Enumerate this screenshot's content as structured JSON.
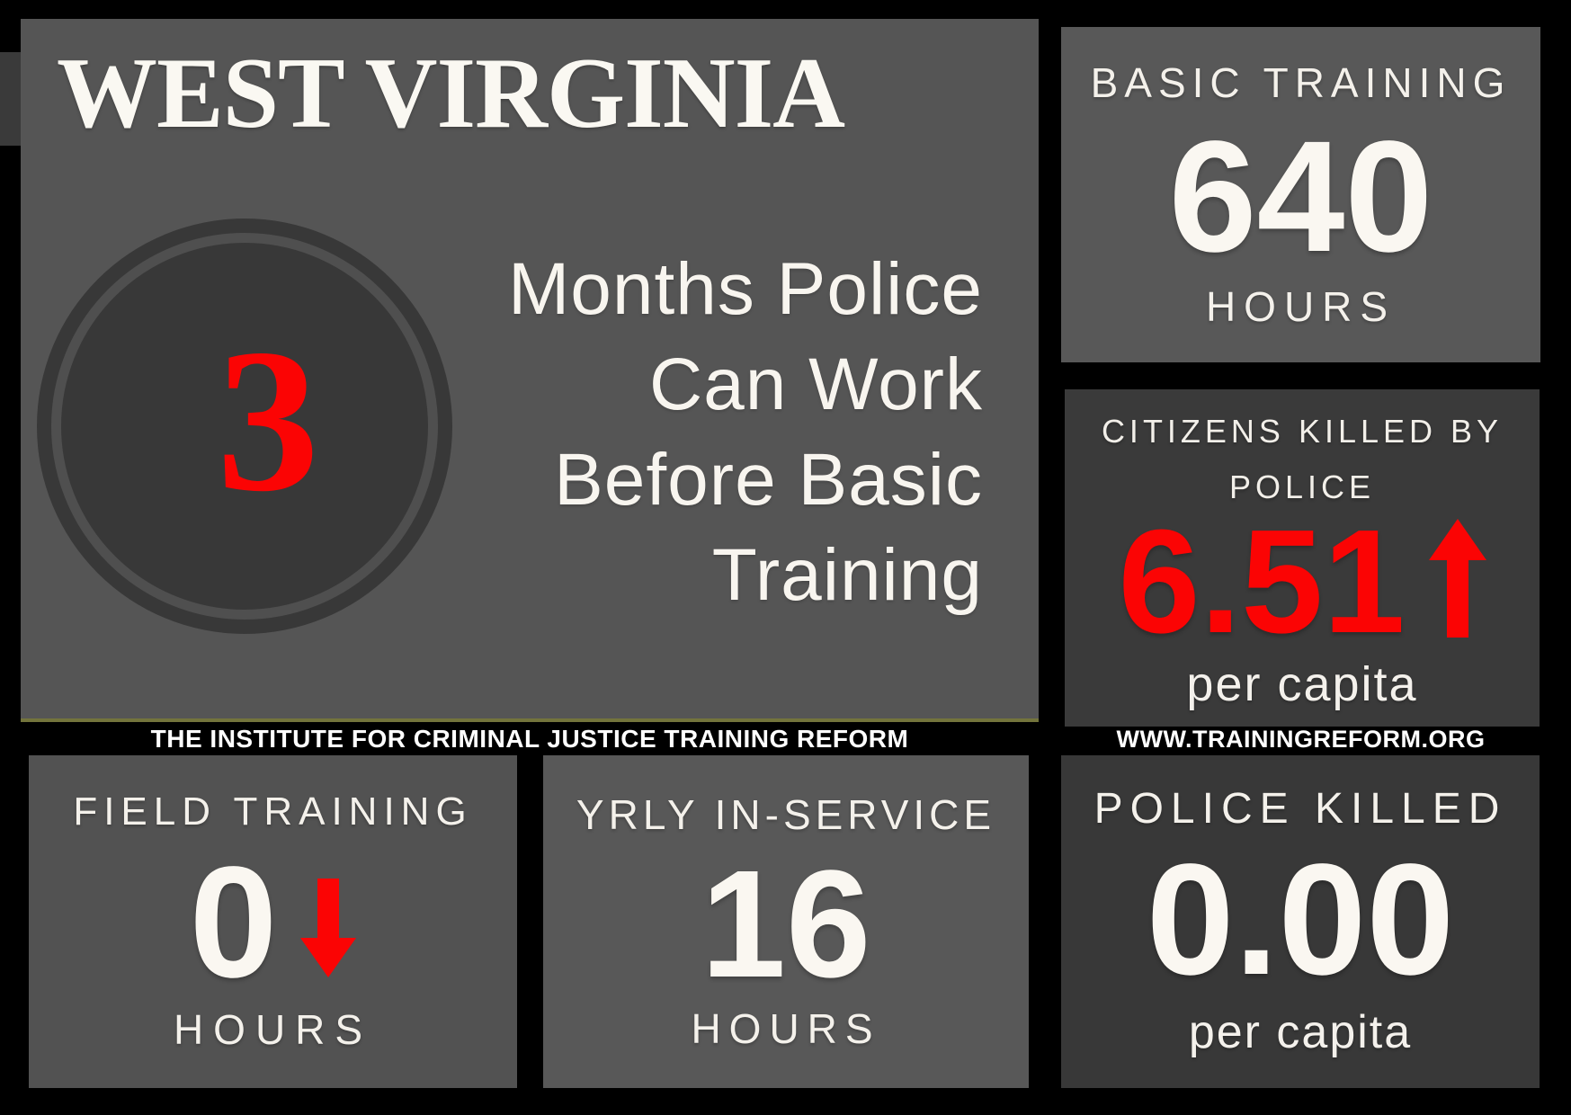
{
  "colors": {
    "background": "#000000",
    "accent_red": "#fb0404",
    "off_white": "#f7f4ee",
    "main_panel_bg": "#555555",
    "dark_panel_bg": "#3a3a3a",
    "olive_accent_line": "#73743c"
  },
  "main_panel": {
    "title": "WEST VIRGINIA",
    "months_value": "3",
    "months_lines": [
      "Months Police",
      "Can Work",
      "Before Basic",
      "Training"
    ]
  },
  "basic_training": {
    "heading": "BASIC TRAINING",
    "value": "640",
    "unit": "HOURS"
  },
  "citizens_killed": {
    "heading_line1": "CITIZENS KILLED BY",
    "heading_line2": "POLICE",
    "value": "6.51",
    "trend": "up",
    "unit": "per capita"
  },
  "footer": {
    "left_caption": "THE INSTITUTE FOR CRIMINAL JUSTICE TRAINING REFORM",
    "right_caption": "WWW.TRAININGREFORM.ORG"
  },
  "field_training": {
    "heading": "FIELD TRAINING",
    "value": "0",
    "trend": "down",
    "unit": "HOURS"
  },
  "yearly_in_service": {
    "heading": "YRLY IN-SERVICE",
    "value": "16",
    "unit": "HOURS"
  },
  "police_killed": {
    "heading": "POLICE KILLED",
    "value": "0.00",
    "unit": "per capita"
  },
  "chart_data": {
    "type": "table",
    "title": "West Virginia police training infographic",
    "rows": [
      {
        "metric": "Months police can work before basic training",
        "value": 3
      },
      {
        "metric": "Basic training hours",
        "value": 640
      },
      {
        "metric": "Citizens killed by police per capita",
        "value": 6.51,
        "trend": "up"
      },
      {
        "metric": "Field training hours",
        "value": 0,
        "trend": "down"
      },
      {
        "metric": "Yearly in-service training hours",
        "value": 16
      },
      {
        "metric": "Police killed per capita",
        "value": 0.0
      }
    ]
  }
}
